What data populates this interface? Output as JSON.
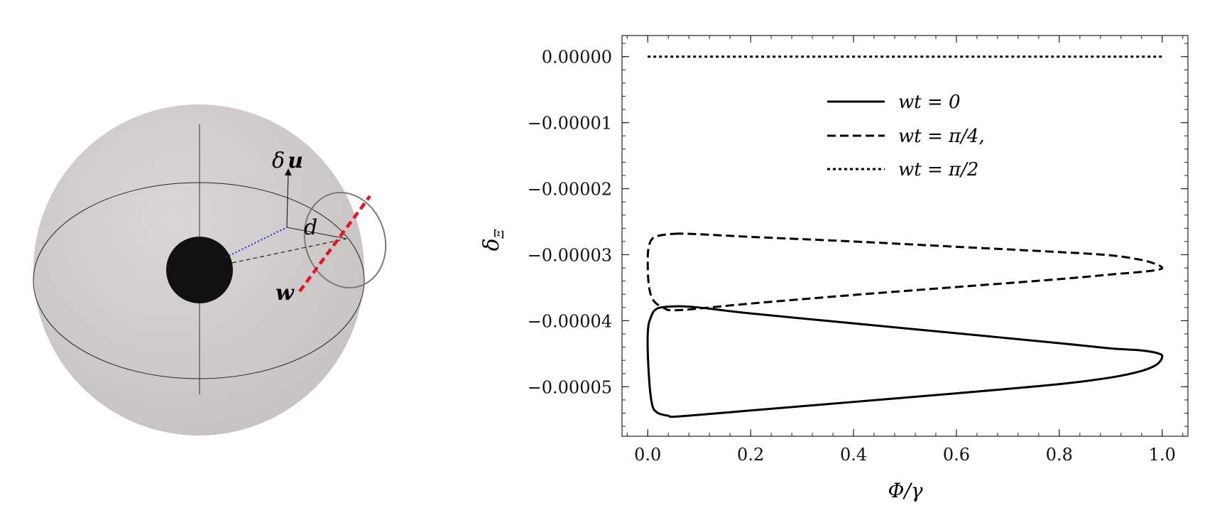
{
  "diagram": {
    "labels": {
      "delta_u_prefix": "δ",
      "delta_u_vector": "u",
      "distance": "d",
      "w_vector": "w"
    },
    "colors": {
      "sphere": "#cfcbca",
      "core": "#111111",
      "w_line": "#e8141c",
      "dotted_line": "#2a2ad0",
      "circle": "#7a7a7a"
    }
  },
  "chart_data": {
    "type": "line",
    "xlabel": "Φ/γ",
    "ylabel": "δ",
    "ylabel_sub": "Ξ",
    "xlim": [
      -0.05,
      1.05
    ],
    "ylim": [
      -5.75e-05,
      3.2e-06
    ],
    "x_ticks": [
      0.0,
      0.2,
      0.4,
      0.6,
      0.8,
      1.0
    ],
    "x_tick_labels": [
      "0.0",
      "0.2",
      "0.4",
      "0.6",
      "0.8",
      "1.0"
    ],
    "y_ticks": [
      0.0,
      -1e-05,
      -2e-05,
      -3e-05,
      -4e-05,
      -5e-05
    ],
    "y_tick_labels": [
      "0.00000",
      "−0.00001",
      "−0.00002",
      "−0.00003",
      "−0.00004",
      "−0.00005"
    ],
    "grid": false,
    "legend_position": "top-center",
    "series": [
      {
        "name": "wt = 0",
        "style": "solid",
        "color": "#000000",
        "x": [
          0.06,
          0.02,
          0.006,
          0.0,
          0.002,
          0.008,
          0.018,
          0.04,
          0.06,
          0.2,
          0.4,
          0.6,
          0.8,
          0.9,
          0.96,
          0.99,
          1.0,
          0.99,
          0.96,
          0.9,
          0.8,
          0.6,
          0.4,
          0.2,
          0.1,
          0.06
        ],
        "y": [
          -3.78e-05,
          -3.81e-05,
          -3.95e-05,
          -4.2e-05,
          -4.8e-05,
          -5.25e-05,
          -5.39e-05,
          -5.44e-05,
          -5.45e-05,
          -5.36e-05,
          -5.23e-05,
          -5.1e-05,
          -4.96e-05,
          -4.86e-05,
          -4.76e-05,
          -4.66e-05,
          -4.54e-05,
          -4.49e-05,
          -4.45e-05,
          -4.42e-05,
          -4.34e-05,
          -4.19e-05,
          -4.04e-05,
          -3.89e-05,
          -3.8e-05,
          -3.78e-05
        ]
      },
      {
        "name": "wt = π/4,",
        "style": "dashed",
        "color": "#000000",
        "x": [
          0.06,
          0.03,
          0.01,
          0.002,
          0.0,
          0.002,
          0.01,
          0.03,
          0.06,
          0.2,
          0.4,
          0.6,
          0.8,
          0.9,
          0.96,
          0.99,
          1.0,
          0.99,
          0.96,
          0.9,
          0.8,
          0.6,
          0.4,
          0.2,
          0.1,
          0.06
        ],
        "y": [
          -2.68e-05,
          -2.7e-05,
          -2.75e-05,
          -2.88e-05,
          -3.1e-05,
          -3.45e-05,
          -3.68e-05,
          -3.8e-05,
          -3.84e-05,
          -3.74e-05,
          -3.61e-05,
          -3.49e-05,
          -3.37e-05,
          -3.3e-05,
          -3.26e-05,
          -3.23e-05,
          -3.2e-05,
          -3.15e-05,
          -3.08e-05,
          -3.01e-05,
          -2.96e-05,
          -2.88e-05,
          -2.8e-05,
          -2.73e-05,
          -2.69e-05,
          -2.68e-05
        ]
      },
      {
        "name": "wt = π/2",
        "style": "dotted",
        "color": "#000000",
        "x": [
          0.0,
          1.0
        ],
        "y": [
          0.0,
          0.0
        ]
      }
    ]
  }
}
